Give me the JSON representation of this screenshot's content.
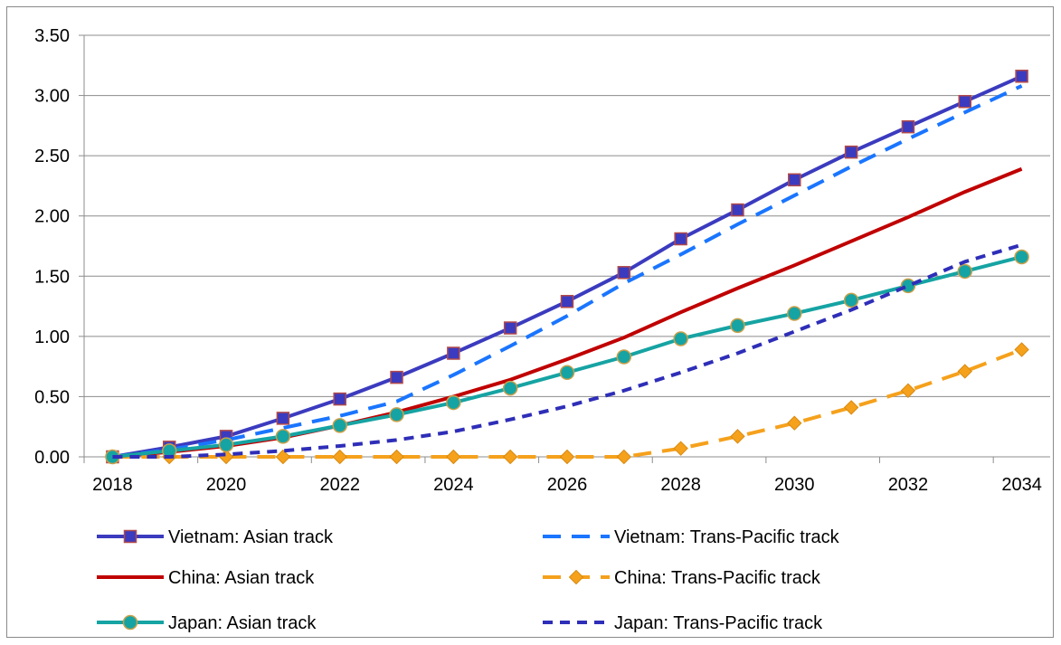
{
  "chart_data": {
    "type": "line",
    "title": "",
    "xlabel": "",
    "ylabel": "",
    "x": [
      2018,
      2019,
      2020,
      2021,
      2022,
      2023,
      2024,
      2025,
      2026,
      2027,
      2028,
      2029,
      2030,
      2031,
      2032,
      2033,
      2034
    ],
    "x_tick_labels": [
      "2018",
      "2020",
      "2022",
      "2024",
      "2026",
      "2028",
      "2030",
      "2032",
      "2034"
    ],
    "y_tick_labels": [
      "0.00",
      "0.50",
      "1.00",
      "1.50",
      "2.00",
      "2.50",
      "3.00",
      "3.50"
    ],
    "ylim": [
      0,
      3.5
    ],
    "grid": "horizontal",
    "legend": "bottom",
    "series": [
      {
        "name": "Vietnam: Asian track",
        "color": "#3b3bbf",
        "style": "solid",
        "marker": "square",
        "values": [
          0.0,
          0.08,
          0.17,
          0.32,
          0.48,
          0.66,
          0.86,
          1.07,
          1.29,
          1.53,
          1.81,
          2.05,
          2.3,
          2.53,
          2.74,
          2.95,
          3.16
        ]
      },
      {
        "name": "Vietnam: Trans-Pacific track",
        "color": "#1a75ff",
        "style": "dashed",
        "marker": "none",
        "values": [
          0.0,
          0.06,
          0.14,
          0.24,
          0.34,
          0.46,
          0.68,
          0.92,
          1.17,
          1.44,
          1.68,
          1.93,
          2.17,
          2.41,
          2.64,
          2.86,
          3.08
        ]
      },
      {
        "name": "China: Asian track",
        "color": "#c00000",
        "style": "solid",
        "marker": "none",
        "values": [
          0.0,
          0.04,
          0.09,
          0.16,
          0.26,
          0.37,
          0.5,
          0.64,
          0.81,
          0.99,
          1.2,
          1.4,
          1.59,
          1.79,
          1.99,
          2.2,
          2.39
        ]
      },
      {
        "name": "China: Trans-Pacific track",
        "color": "#f5a11c",
        "style": "dashed",
        "marker": "diamond",
        "values": [
          0.0,
          0.0,
          0.0,
          0.0,
          0.0,
          0.0,
          0.0,
          0.0,
          0.0,
          0.0,
          0.07,
          0.17,
          0.28,
          0.41,
          0.55,
          0.71,
          0.89
        ]
      },
      {
        "name": "Japan: Asian track",
        "color": "#16a3a3",
        "style": "solid",
        "marker": "circle",
        "values": [
          0.0,
          0.05,
          0.1,
          0.17,
          0.26,
          0.35,
          0.45,
          0.57,
          0.7,
          0.83,
          0.98,
          1.09,
          1.19,
          1.3,
          1.42,
          1.54,
          1.66
        ]
      },
      {
        "name": "Japan: Trans-Pacific track",
        "color": "#2e2eb8",
        "style": "dotted",
        "marker": "none",
        "values": [
          0.0,
          0.0,
          0.02,
          0.05,
          0.09,
          0.14,
          0.21,
          0.31,
          0.42,
          0.55,
          0.7,
          0.86,
          1.04,
          1.22,
          1.42,
          1.62,
          1.76
        ]
      }
    ]
  }
}
